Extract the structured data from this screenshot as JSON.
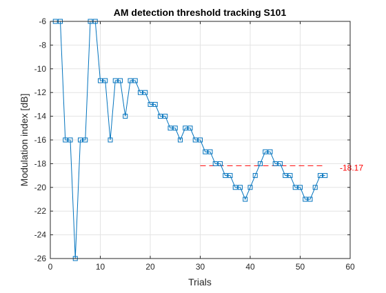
{
  "chart_data": {
    "type": "line",
    "title": "AM detection threshold tracking S101",
    "xlabel": "Trials",
    "ylabel": "Modulation index [dB]",
    "xlim": [
      0,
      60
    ],
    "ylim": [
      -26,
      -6
    ],
    "xticks": [
      0,
      10,
      20,
      30,
      40,
      50,
      60
    ],
    "yticks": [
      -26,
      -24,
      -22,
      -20,
      -18,
      -16,
      -14,
      -12,
      -10,
      -8,
      -6
    ],
    "grid": true,
    "series": [
      {
        "color": "#0072BD",
        "marker": "square",
        "x": [
          1,
          2,
          3,
          4,
          5,
          6,
          7,
          8,
          9,
          10,
          11,
          12,
          13,
          14,
          15,
          16,
          17,
          18,
          19,
          20,
          21,
          22,
          23,
          24,
          25,
          26,
          27,
          28,
          29,
          30,
          31,
          32,
          33,
          34,
          35,
          36,
          37,
          38,
          39,
          40,
          41,
          42,
          43,
          44,
          45,
          46,
          47,
          48,
          49,
          50,
          51,
          52,
          53,
          54,
          55
        ],
        "y": [
          -6,
          -6,
          -16,
          -16,
          -26,
          -16,
          -16,
          -6,
          -6,
          -11,
          -11,
          -16,
          -11,
          -11,
          -14,
          -11,
          -11,
          -12,
          -12,
          -13,
          -13,
          -14,
          -14,
          -15,
          -15,
          -16,
          -15,
          -15,
          -16,
          -16,
          -17,
          -17,
          -18,
          -18,
          -19,
          -19,
          -20,
          -20,
          -21,
          -20,
          -19,
          -18,
          -17,
          -17,
          -18,
          -18,
          -19,
          -19,
          -20,
          -20,
          -21,
          -21,
          -20,
          -19,
          -19
        ]
      }
    ],
    "threshold": {
      "value": -18.17,
      "label": "-18.17",
      "x_start": 30,
      "x_end": 55,
      "color": "#FF0000"
    }
  }
}
